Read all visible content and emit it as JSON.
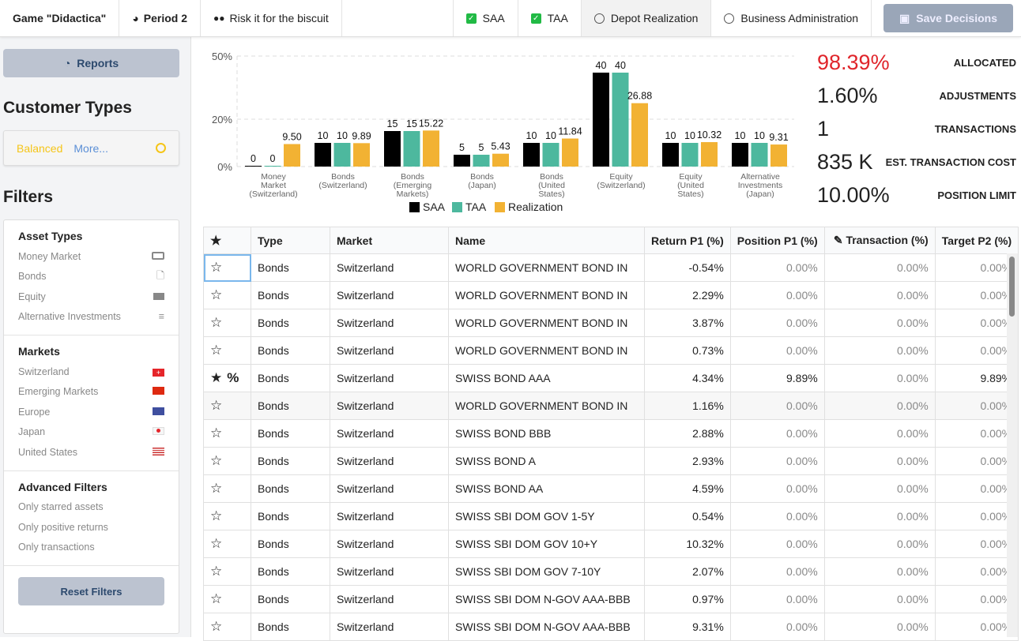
{
  "topbar": {
    "game": "Game \"Didactica\"",
    "period": "Period 2",
    "team": "Risk it for the biscuit",
    "saa": "SAA",
    "taa": "TAA",
    "depot": "Depot Realization",
    "business": "Business Administration",
    "save": "Save Decisions"
  },
  "sidebar": {
    "reports": "Reports",
    "customer_types_title": "Customer Types",
    "customer_type": "Balanced",
    "more": "More...",
    "filters_title": "Filters",
    "asset_types_title": "Asset Types",
    "asset_types": [
      {
        "label": "Money Market",
        "icon": "money-bill-icon"
      },
      {
        "label": "Bonds",
        "icon": "file-icon"
      },
      {
        "label": "Equity",
        "icon": "industry-icon"
      },
      {
        "label": "Alternative Investments",
        "icon": "signpost-icon"
      }
    ],
    "markets_title": "Markets",
    "markets": [
      {
        "label": "Switzerland",
        "icon": "flag-switzerland-icon"
      },
      {
        "label": "Emerging Markets",
        "icon": "flag-china-icon"
      },
      {
        "label": "Europe",
        "icon": "flag-eu-icon"
      },
      {
        "label": "Japan",
        "icon": "flag-japan-icon"
      },
      {
        "label": "United States",
        "icon": "flag-us-icon"
      }
    ],
    "advanced_title": "Advanced Filters",
    "advanced": [
      "Only starred assets",
      "Only positive returns",
      "Only transactions"
    ],
    "reset": "Reset Filters"
  },
  "colors": {
    "saa": "#000000",
    "taa": "#4db89e",
    "realization": "#f2b233",
    "allocated": "#e0252b",
    "accent_yellow": "#f5c518"
  },
  "stats": [
    {
      "value": "98.39%",
      "label": "ALLOCATED"
    },
    {
      "value": "1.60%",
      "label": "ADJUSTMENTS"
    },
    {
      "value": "1",
      "label": "TRANSACTIONS"
    },
    {
      "value": "835 K",
      "label": "EST. TRANSACTION COST"
    },
    {
      "value": "10.00%",
      "label": "POSITION LIMIT"
    }
  ],
  "chart_data": {
    "type": "bar",
    "yticks": [
      "0%",
      "20%",
      "50%"
    ],
    "ylim": [
      0,
      50
    ],
    "grid": true,
    "legend": "bottom",
    "categories": [
      [
        "Money",
        "Market",
        "(Switzerland)"
      ],
      [
        "Bonds",
        "(Switzerland)"
      ],
      [
        "Bonds",
        "(Emerging",
        "Markets)"
      ],
      [
        "Bonds",
        "(Japan)"
      ],
      [
        "Bonds",
        "(United",
        "States)"
      ],
      [
        "Equity",
        "(Switzerland)"
      ],
      [
        "Equity",
        "(United",
        "States)"
      ],
      [
        "Alternative",
        "Investments",
        "(Japan)"
      ]
    ],
    "series": [
      {
        "name": "SAA",
        "values": [
          0,
          10,
          15,
          5,
          10,
          40,
          10,
          10
        ],
        "labels": [
          "0",
          "10",
          "15",
          "5",
          "10",
          "40",
          "10",
          "10"
        ]
      },
      {
        "name": "TAA",
        "values": [
          0,
          10,
          15,
          5,
          10,
          40,
          10,
          10
        ],
        "labels": [
          "0",
          "10",
          "15",
          "5",
          "10",
          "40",
          "10",
          "10"
        ]
      },
      {
        "name": "Realization",
        "values": [
          9.5,
          9.89,
          15.22,
          5.43,
          11.84,
          26.88,
          10.32,
          9.31
        ],
        "labels": [
          "9.50",
          "9.89",
          "15.22",
          "5.43",
          "11.84",
          "26.88",
          "10.32",
          "9.31"
        ]
      }
    ]
  },
  "table": {
    "headers": [
      "Type",
      "Market",
      "Name",
      "Return P1 (%)",
      "Position P1 (%)",
      "Transaction (%)",
      "Target P2 (%)"
    ],
    "rows": [
      {
        "starred": false,
        "type": "Bonds",
        "market": "Switzerland",
        "name": "WORLD GOVERNMENT BOND IN",
        "ret": "-0.54%",
        "pos": "0.00%",
        "tr": "0.00%",
        "tgt": "0.00%"
      },
      {
        "starred": false,
        "type": "Bonds",
        "market": "Switzerland",
        "name": "WORLD GOVERNMENT BOND IN",
        "ret": "2.29%",
        "pos": "0.00%",
        "tr": "0.00%",
        "tgt": "0.00%"
      },
      {
        "starred": false,
        "type": "Bonds",
        "market": "Switzerland",
        "name": "WORLD GOVERNMENT BOND IN",
        "ret": "3.87%",
        "pos": "0.00%",
        "tr": "0.00%",
        "tgt": "0.00%"
      },
      {
        "starred": false,
        "type": "Bonds",
        "market": "Switzerland",
        "name": "WORLD GOVERNMENT BOND IN",
        "ret": "0.73%",
        "pos": "0.00%",
        "tr": "0.00%",
        "tgt": "0.00%"
      },
      {
        "starred": true,
        "percent": "%",
        "type": "Bonds",
        "market": "Switzerland",
        "name": "SWISS BOND AAA",
        "ret": "4.34%",
        "pos": "9.89%",
        "tr": "0.00%",
        "tgt": "9.89%"
      },
      {
        "starred": false,
        "type": "Bonds",
        "market": "Switzerland",
        "name": "WORLD GOVERNMENT BOND IN",
        "ret": "1.16%",
        "pos": "0.00%",
        "tr": "0.00%",
        "tgt": "0.00%"
      },
      {
        "starred": false,
        "type": "Bonds",
        "market": "Switzerland",
        "name": "SWISS BOND BBB",
        "ret": "2.88%",
        "pos": "0.00%",
        "tr": "0.00%",
        "tgt": "0.00%"
      },
      {
        "starred": false,
        "type": "Bonds",
        "market": "Switzerland",
        "name": "SWISS BOND A",
        "ret": "2.93%",
        "pos": "0.00%",
        "tr": "0.00%",
        "tgt": "0.00%"
      },
      {
        "starred": false,
        "type": "Bonds",
        "market": "Switzerland",
        "name": "SWISS BOND AA",
        "ret": "4.59%",
        "pos": "0.00%",
        "tr": "0.00%",
        "tgt": "0.00%"
      },
      {
        "starred": false,
        "type": "Bonds",
        "market": "Switzerland",
        "name": "SWISS SBI DOM GOV 1-5Y",
        "ret": "0.54%",
        "pos": "0.00%",
        "tr": "0.00%",
        "tgt": "0.00%"
      },
      {
        "starred": false,
        "type": "Bonds",
        "market": "Switzerland",
        "name": "SWISS SBI DOM GOV 10+Y",
        "ret": "10.32%",
        "pos": "0.00%",
        "tr": "0.00%",
        "tgt": "0.00%"
      },
      {
        "starred": false,
        "type": "Bonds",
        "market": "Switzerland",
        "name": "SWISS SBI DOM GOV 7-10Y",
        "ret": "2.07%",
        "pos": "0.00%",
        "tr": "0.00%",
        "tgt": "0.00%"
      },
      {
        "starred": false,
        "type": "Bonds",
        "market": "Switzerland",
        "name": "SWISS SBI DOM N-GOV AAA-BBB",
        "ret": "0.97%",
        "pos": "0.00%",
        "tr": "0.00%",
        "tgt": "0.00%"
      },
      {
        "starred": false,
        "type": "Bonds",
        "market": "Switzerland",
        "name": "SWISS SBI DOM N-GOV AAA-BBB",
        "ret": "9.31%",
        "pos": "0.00%",
        "tr": "0.00%",
        "tgt": "0.00%"
      }
    ]
  }
}
